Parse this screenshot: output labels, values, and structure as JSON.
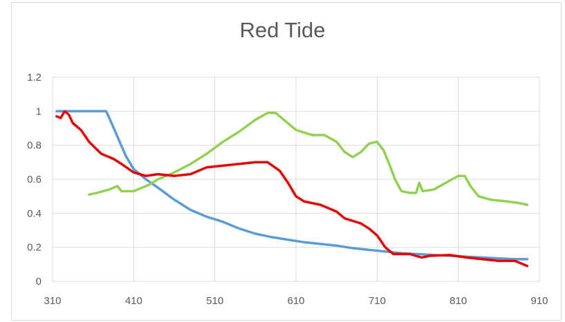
{
  "chart_data": {
    "type": "line",
    "title": "Red Tide",
    "xlabel": "",
    "ylabel": "",
    "xlim": [
      310,
      910
    ],
    "ylim": [
      0,
      1.2
    ],
    "x_ticks": [
      310,
      410,
      510,
      610,
      710,
      810,
      910
    ],
    "y_ticks": [
      0,
      0.2,
      0.4,
      0.6,
      0.8,
      1,
      1.2
    ],
    "y_tick_labels": [
      "0",
      "0.2",
      "0.4",
      "0.6",
      "0.8",
      "1",
      "1.2"
    ],
    "grid": true,
    "legend": "none",
    "series": [
      {
        "color": "#5b9bd5",
        "points": [
          [
            315,
            1.0
          ],
          [
            335,
            1.0
          ],
          [
            355,
            1.0
          ],
          [
            376,
            1.0
          ],
          [
            380,
            0.96
          ],
          [
            390,
            0.85
          ],
          [
            400,
            0.74
          ],
          [
            410,
            0.66
          ],
          [
            425,
            0.6
          ],
          [
            440,
            0.55
          ],
          [
            460,
            0.48
          ],
          [
            480,
            0.42
          ],
          [
            500,
            0.38
          ],
          [
            520,
            0.35
          ],
          [
            540,
            0.31
          ],
          [
            560,
            0.28
          ],
          [
            580,
            0.26
          ],
          [
            600,
            0.245
          ],
          [
            620,
            0.23
          ],
          [
            640,
            0.22
          ],
          [
            660,
            0.21
          ],
          [
            680,
            0.195
          ],
          [
            700,
            0.185
          ],
          [
            720,
            0.175
          ],
          [
            740,
            0.165
          ],
          [
            760,
            0.16
          ],
          [
            780,
            0.155
          ],
          [
            800,
            0.15
          ],
          [
            820,
            0.145
          ],
          [
            840,
            0.14
          ],
          [
            860,
            0.135
          ],
          [
            880,
            0.13
          ],
          [
            895,
            0.13
          ]
        ]
      },
      {
        "color": "#92d050",
        "points": [
          [
            355,
            0.51
          ],
          [
            365,
            0.52
          ],
          [
            380,
            0.54
          ],
          [
            390,
            0.56
          ],
          [
            395,
            0.53
          ],
          [
            410,
            0.53
          ],
          [
            420,
            0.55
          ],
          [
            430,
            0.57
          ],
          [
            440,
            0.6
          ],
          [
            460,
            0.64
          ],
          [
            480,
            0.69
          ],
          [
            500,
            0.75
          ],
          [
            520,
            0.82
          ],
          [
            540,
            0.88
          ],
          [
            560,
            0.95
          ],
          [
            575,
            0.99
          ],
          [
            585,
            0.99
          ],
          [
            595,
            0.95
          ],
          [
            610,
            0.89
          ],
          [
            630,
            0.86
          ],
          [
            645,
            0.86
          ],
          [
            660,
            0.82
          ],
          [
            670,
            0.76
          ],
          [
            680,
            0.73
          ],
          [
            690,
            0.76
          ],
          [
            700,
            0.81
          ],
          [
            710,
            0.82
          ],
          [
            718,
            0.77
          ],
          [
            725,
            0.69
          ],
          [
            732,
            0.6
          ],
          [
            740,
            0.53
          ],
          [
            750,
            0.52
          ],
          [
            758,
            0.52
          ],
          [
            762,
            0.58
          ],
          [
            766,
            0.53
          ],
          [
            780,
            0.54
          ],
          [
            795,
            0.58
          ],
          [
            810,
            0.62
          ],
          [
            818,
            0.62
          ],
          [
            825,
            0.56
          ],
          [
            835,
            0.5
          ],
          [
            850,
            0.48
          ],
          [
            870,
            0.47
          ],
          [
            885,
            0.46
          ],
          [
            895,
            0.45
          ]
        ]
      },
      {
        "color": "#e60000",
        "points": [
          [
            315,
            0.97
          ],
          [
            320,
            0.96
          ],
          [
            325,
            1.0
          ],
          [
            330,
            0.98
          ],
          [
            335,
            0.93
          ],
          [
            345,
            0.89
          ],
          [
            355,
            0.82
          ],
          [
            370,
            0.75
          ],
          [
            385,
            0.72
          ],
          [
            395,
            0.69
          ],
          [
            410,
            0.64
          ],
          [
            425,
            0.62
          ],
          [
            440,
            0.63
          ],
          [
            460,
            0.62
          ],
          [
            480,
            0.63
          ],
          [
            500,
            0.67
          ],
          [
            520,
            0.68
          ],
          [
            540,
            0.69
          ],
          [
            560,
            0.7
          ],
          [
            575,
            0.7
          ],
          [
            590,
            0.65
          ],
          [
            600,
            0.58
          ],
          [
            610,
            0.5
          ],
          [
            620,
            0.47
          ],
          [
            640,
            0.45
          ],
          [
            660,
            0.41
          ],
          [
            670,
            0.37
          ],
          [
            690,
            0.34
          ],
          [
            700,
            0.31
          ],
          [
            710,
            0.27
          ],
          [
            720,
            0.2
          ],
          [
            730,
            0.16
          ],
          [
            750,
            0.16
          ],
          [
            765,
            0.14
          ],
          [
            775,
            0.15
          ],
          [
            800,
            0.155
          ],
          [
            820,
            0.14
          ],
          [
            840,
            0.13
          ],
          [
            860,
            0.12
          ],
          [
            880,
            0.12
          ],
          [
            895,
            0.09
          ]
        ]
      }
    ]
  }
}
